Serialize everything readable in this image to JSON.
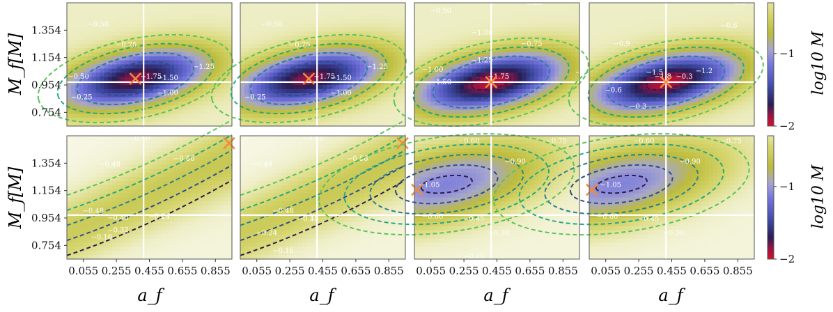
{
  "chart_data": {
    "type": "heatmap",
    "layout": {
      "rows": 2,
      "cols": 4
    },
    "xlabel": "a_f",
    "ylabel": "M_f[M]",
    "x_ticks": [
      "0.055",
      "0.255",
      "0.455",
      "0.655",
      "0.855"
    ],
    "y_ticks": [
      "1.354",
      "1.154",
      "0.954",
      "0.754"
    ],
    "xlim": [
      -0.045,
      0.955
    ],
    "ylim": [
      0.654,
      1.554
    ],
    "colorbar": {
      "label": "log10 M",
      "ticks": [
        "−1",
        "−2"
      ],
      "range": [
        -2,
        -0.3
      ]
    },
    "truth": {
      "a_f": 0.42,
      "M_f": 0.975
    },
    "panels": [
      {
        "row": 0,
        "col": 0,
        "min": {
          "a": 0.37,
          "m": 1.0,
          "v": -1.85
        },
        "cross_x": 0.42,
        "cross_y": 0.975,
        "marker": {
          "a": 0.37,
          "m": 1.0
        },
        "contour_labels": [
          "−0.50",
          "−0.75",
          "−1.00",
          "−1.25",
          "−1.50",
          "−1.75",
          "−0.50",
          "−0.25"
        ]
      },
      {
        "row": 0,
        "col": 1,
        "min": {
          "a": 0.37,
          "m": 1.0,
          "v": -1.85
        },
        "cross_x": 0.42,
        "cross_y": 0.975,
        "marker": {
          "a": 0.37,
          "m": 1.0
        },
        "contour_labels": [
          "−0.50",
          "−0.75",
          "−1.00",
          "−1.25",
          "−1.50",
          "−1.75",
          "−0.25"
        ]
      },
      {
        "row": 0,
        "col": 2,
        "min": {
          "a": 0.42,
          "m": 0.975,
          "v": -1.95
        },
        "cross_x": 0.42,
        "cross_y": 0.975,
        "marker": {
          "a": 0.42,
          "m": 0.975
        },
        "contour_labels": [
          "−0.50",
          "−0.75",
          "−1.00",
          "−1.25",
          "−1.50",
          "−1.75",
          "−0.25",
          "−0.50",
          "−1.00"
        ]
      },
      {
        "row": 0,
        "col": 3,
        "min": {
          "a": 0.42,
          "m": 0.975,
          "v": -1.95
        },
        "cross_x": 0.42,
        "cross_y": 0.975,
        "marker": {
          "a": 0.42,
          "m": 0.975
        },
        "contour_labels": [
          "−0.6",
          "−0.9",
          "−1.2",
          "−1.5",
          "−1.8",
          "−0.3",
          "−0.6",
          "−0.6",
          "−0.3"
        ]
      },
      {
        "row": 1,
        "col": 0,
        "min": {
          "a": 0.6,
          "m": 1.2,
          "v": -0.58
        },
        "cross_x": 0.42,
        "cross_y": 0.975,
        "marker": {
          "a": 0.95,
          "m": 1.5
        },
        "contour_labels": [
          "−0.40",
          "−0.48",
          "−0.56",
          "−0.48",
          "−0.40",
          "−0.32",
          "−0.24",
          "−0.16"
        ]
      },
      {
        "row": 1,
        "col": 1,
        "min": {
          "a": 0.6,
          "m": 1.2,
          "v": -0.58
        },
        "cross_x": 0.42,
        "cross_y": 0.975,
        "marker": {
          "a": 0.95,
          "m": 1.5
        },
        "contour_labels": [
          "−0.40",
          "−0.48",
          "−0.56",
          "−0.48",
          "−0.40",
          "−0.32",
          "−0.24",
          "−0.16"
        ]
      },
      {
        "row": 1,
        "col": 2,
        "min": {
          "a": 0.15,
          "m": 1.2,
          "v": -1.1
        },
        "cross_x": 0.42,
        "cross_y": 0.975,
        "marker": {
          "a": -0.04,
          "m": 1.16
        },
        "contour_labels": [
          "−0.60",
          "−0.75",
          "−0.90",
          "−1.05",
          "−0.60",
          "−0.45",
          "−0.30",
          "−0.15"
        ]
      },
      {
        "row": 1,
        "col": 3,
        "min": {
          "a": 0.15,
          "m": 1.2,
          "v": -1.1
        },
        "cross_x": 0.42,
        "cross_y": 0.975,
        "marker": {
          "a": -0.04,
          "m": 1.16
        },
        "contour_labels": [
          "−0.60",
          "−0.75",
          "−0.90",
          "−1.05",
          "−0.60",
          "−0.45",
          "−0.30"
        ]
      }
    ]
  }
}
